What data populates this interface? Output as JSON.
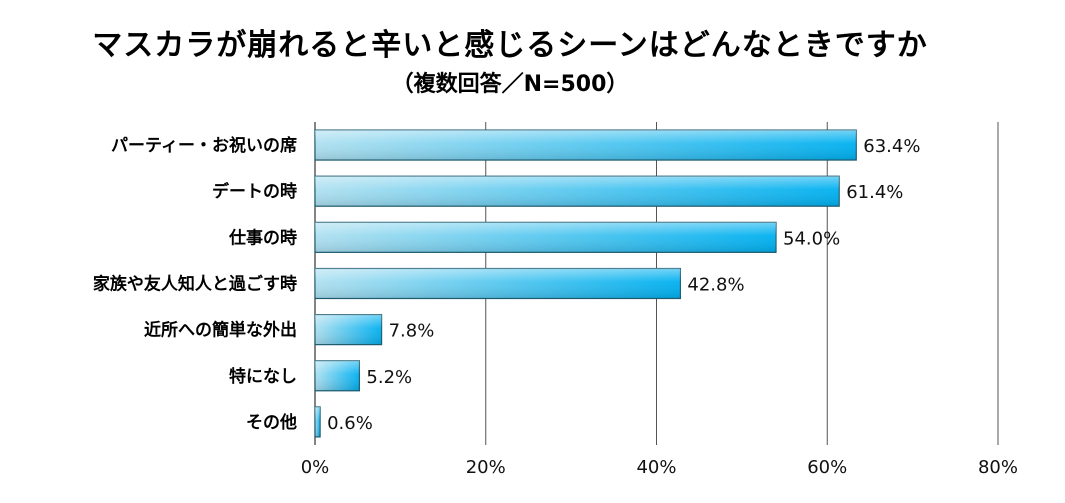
{
  "chart_data": {
    "type": "bar",
    "orientation": "horizontal",
    "title": "マスカラが崩れると辛いと感じるシーンはどんなときですか",
    "subtitle": "（複数回答／N=500）",
    "categories": [
      "パーティー・お祝いの席",
      "デートの時",
      "仕事の時",
      "家族や友人知人と過ごす時",
      "近所への簡単な外出",
      "特になし",
      "その他"
    ],
    "values": [
      63.4,
      61.4,
      54.0,
      42.8,
      7.8,
      5.2,
      0.6
    ],
    "value_labels": [
      "63.4%",
      "61.4%",
      "54.0%",
      "42.8%",
      "7.8%",
      "5.2%",
      "0.6%"
    ],
    "xlim": [
      0,
      80
    ],
    "x_ticks": [
      0,
      20,
      40,
      60,
      80
    ],
    "x_tick_labels": [
      "0%",
      "20%",
      "40%",
      "60%",
      "80%"
    ],
    "grid": true,
    "colors": {
      "bar_light": "#aee0f0",
      "bar_dark": "#00b0f0",
      "bar_edge": "#1f5f74",
      "grid": "#555555"
    }
  }
}
